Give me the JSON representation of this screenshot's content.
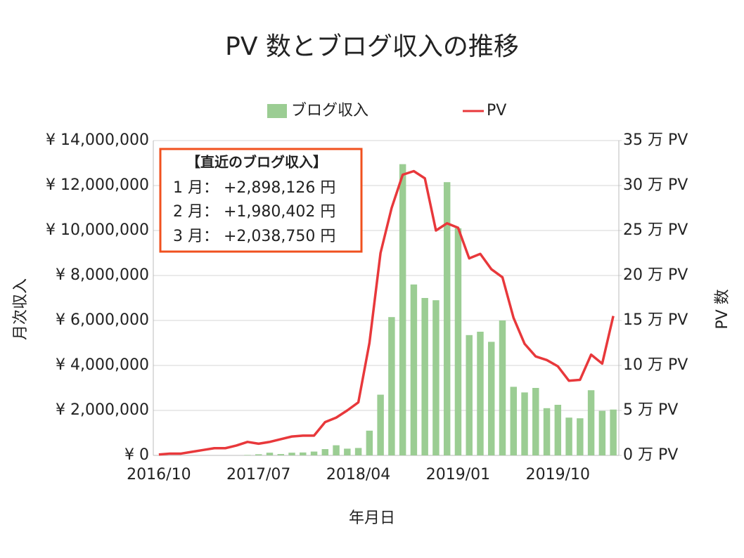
{
  "chart_data": {
    "type": "bar_line",
    "title": "PV 数とブログ収入の推移",
    "x_label": "年月日",
    "y_label": "月次収入",
    "y2_label": "PV 数",
    "categories": [
      "2016/10",
      null,
      null,
      null,
      null,
      null,
      null,
      null,
      null,
      "2017/07",
      null,
      null,
      null,
      null,
      null,
      null,
      null,
      null,
      "2018/04",
      null,
      null,
      null,
      null,
      null,
      null,
      null,
      null,
      "2019/01",
      null,
      null,
      null,
      null,
      null,
      null,
      null,
      null,
      "2019/10",
      null,
      null,
      null,
      null,
      null
    ],
    "series": [
      {
        "name": "ブログ収入",
        "type": "bar",
        "color": "#9bcd93",
        "axis": "y",
        "values": [
          0,
          0,
          0,
          0,
          0,
          0,
          0,
          0,
          20000,
          50000,
          120000,
          60000,
          120000,
          130000,
          170000,
          280000,
          450000,
          300000,
          330000,
          1100000,
          2700000,
          6150000,
          12950000,
          7600000,
          7000000,
          6900000,
          12150000,
          10100000,
          5350000,
          5500000,
          5050000,
          6000000,
          3050000,
          2800000,
          3000000,
          2100000,
          2250000,
          1680000,
          1650000,
          2898126,
          1980402,
          2038750
        ]
      },
      {
        "name": "PV",
        "type": "line",
        "color": "#e8383b",
        "axis": "y2",
        "values": [
          0.1,
          0.2,
          0.2,
          0.4,
          0.6,
          0.8,
          0.8,
          1.1,
          1.5,
          1.3,
          1.5,
          1.8,
          2.1,
          2.2,
          2.2,
          3.7,
          4.2,
          5.0,
          5.9,
          12.5,
          22.5,
          27.5,
          31.2,
          31.6,
          30.8,
          25.0,
          25.8,
          25.3,
          21.9,
          22.4,
          20.7,
          19.8,
          15.3,
          12.4,
          11.0,
          10.6,
          9.9,
          8.3,
          8.4,
          11.2,
          10.2,
          15.5
        ]
      }
    ],
    "ylim": [
      0,
      14000000
    ],
    "yticks": [
      {
        "value": 0,
        "label": "¥ 0"
      },
      {
        "value": 2000000,
        "label": "¥ 2,000,000"
      },
      {
        "value": 4000000,
        "label": "¥ 4,000,000"
      },
      {
        "value": 6000000,
        "label": "¥ 6,000,000"
      },
      {
        "value": 8000000,
        "label": "¥ 8,000,000"
      },
      {
        "value": 10000000,
        "label": "¥ 10,000,000"
      },
      {
        "value": 12000000,
        "label": "¥ 12,000,000"
      },
      {
        "value": 14000000,
        "label": "¥ 14,000,000"
      }
    ],
    "y2lim": [
      0,
      35
    ],
    "y2ticks": [
      {
        "value": 0,
        "label": "0 万 PV"
      },
      {
        "value": 5,
        "label": "5 万 PV"
      },
      {
        "value": 10,
        "label": "10 万 PV"
      },
      {
        "value": 15,
        "label": "15 万 PV"
      },
      {
        "value": 20,
        "label": "20 万 PV"
      },
      {
        "value": 25,
        "label": "25 万 PV"
      },
      {
        "value": 30,
        "label": "30 万 PV"
      },
      {
        "value": 35,
        "label": "35 万 PV"
      }
    ],
    "grid": true,
    "legend": "top",
    "annotation": {
      "title": "【直近のブログ収入】",
      "lines": [
        "1 月：  +2,898,126 円",
        "2 月：  +1,980,402 円",
        "3 月：  +2,038,750 円"
      ]
    }
  }
}
